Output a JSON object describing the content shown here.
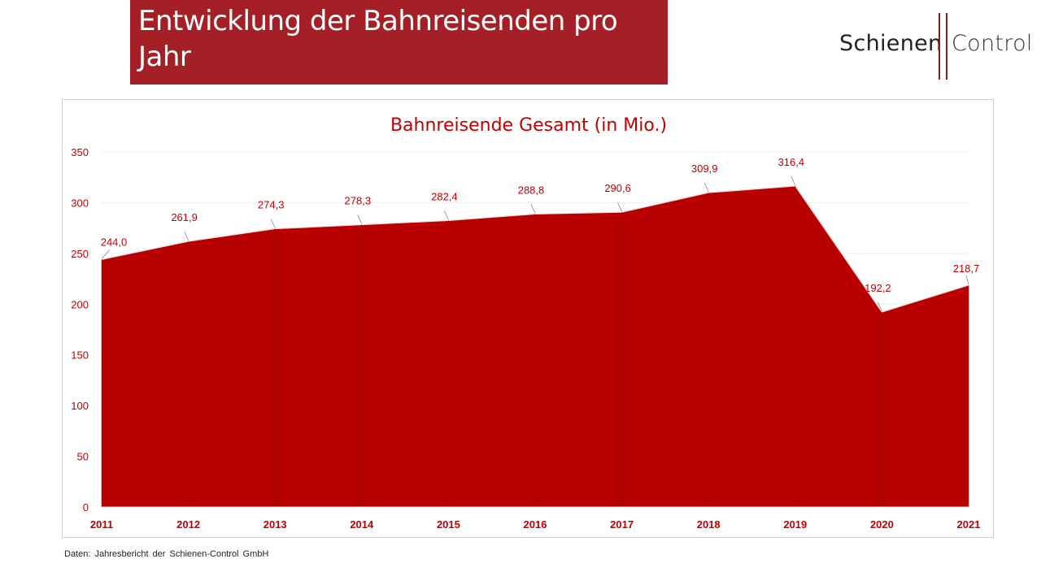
{
  "header": {
    "title": "Entwicklung der Bahnreisenden pro Jahr"
  },
  "logo": {
    "word1": "Schienen",
    "word2": "Control"
  },
  "footer": {
    "source": "Daten: Jahresbericht der Schienen-Control GmbH"
  },
  "colors": {
    "title_bg": "#a51f26",
    "area_fill": "#b80000",
    "label_color": "#c00000",
    "logo_accent": "#8b1a1a"
  },
  "chart_data": {
    "type": "area",
    "title": "Bahnreisende Gesamt (in Mio.)",
    "xlabel": "",
    "ylabel": "",
    "categories": [
      "2011",
      "2012",
      "2013",
      "2014",
      "2015",
      "2016",
      "2017",
      "2018",
      "2019",
      "2020",
      "2021"
    ],
    "values": [
      244.0,
      261.9,
      274.3,
      278.3,
      282.4,
      288.8,
      290.6,
      309.9,
      316.4,
      192.2,
      218.7
    ],
    "value_labels": [
      "244,0",
      "261,9",
      "274,3",
      "278,3",
      "282,4",
      "288,8",
      "290,6",
      "309,9",
      "316,4",
      "192,2",
      "218,7"
    ],
    "ylim": [
      0,
      350
    ],
    "yticks": [
      "0",
      "50",
      "100",
      "150",
      "200",
      "250",
      "300",
      "350"
    ],
    "grid": true
  }
}
